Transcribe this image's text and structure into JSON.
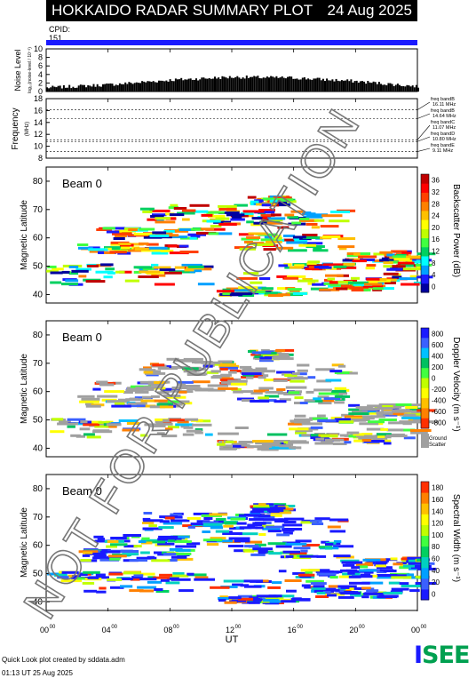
{
  "header": {
    "title": "HOKKAIDO RADAR SUMMARY PLOT",
    "date": "24 Aug 2025",
    "cpid_label": "CPID:",
    "cpid_value": "151"
  },
  "noise_panel": {
    "ylabel": "Noise Level",
    "ylabel_sub": "log₁₀(noise-level / 10⁻³)",
    "yticks": [
      "0",
      "2",
      "4",
      "6",
      "8",
      "10"
    ]
  },
  "frequency_panel": {
    "ylabel": "Frequency",
    "ylabel_unit": "(MHz)",
    "yticks": [
      "8",
      "10",
      "12",
      "14",
      "16",
      "18"
    ],
    "bands": [
      {
        "name": "freq bandB",
        "value": "16.11 MHz",
        "mhz": 16.11
      },
      {
        "name": "freq bandB",
        "value": "14.64 MHz",
        "mhz": 14.64
      },
      {
        "name": "freq bandC",
        "value": "11.07 MHz",
        "mhz": 11.07
      },
      {
        "name": "freq bandD",
        "value": "10.80 MHz",
        "mhz": 10.8
      },
      {
        "name": "freq bandE",
        "value": "9.11 MHz",
        "mhz": 9.11
      }
    ]
  },
  "panels": [
    {
      "id": "power",
      "beam_label": "Beam  0",
      "ylabel": "Magnetic Latitude",
      "yticks": [
        "40",
        "50",
        "60",
        "70",
        "80"
      ],
      "cbar_label": "Backscatter Power (dB)",
      "cbar_ticks": [
        "0",
        "4",
        "8",
        "12",
        "16",
        "20",
        "24",
        "28",
        "32",
        "36"
      ],
      "cbar_colors": [
        "#0000a0",
        "#1a1aff",
        "#00a0ff",
        "#00ffff",
        "#00d060",
        "#40ff40",
        "#c0ff00",
        "#ffff00",
        "#ffc000",
        "#ff8000",
        "#ff4000",
        "#ff0000",
        "#c00000"
      ]
    },
    {
      "id": "velocity",
      "beam_label": "Beam  0",
      "ylabel": "Magnetic Latitude",
      "yticks": [
        "40",
        "50",
        "60",
        "70",
        "80"
      ],
      "cbar_label": "Doppler Velocity (m s⁻¹)",
      "cbar_ticks": [
        "800",
        "600",
        "400",
        "200",
        "0",
        "-200",
        "-400",
        "-600",
        "-800"
      ],
      "cbar_colors": [
        "#1a1aff",
        "#3a60ff",
        "#00c0ff",
        "#00c060",
        "#40ff40",
        "#c0ff00",
        "#ffff00",
        "#ffc000",
        "#ff8000",
        "#ff3000"
      ],
      "ground_label": "Ground",
      "ground_label2": "Scatter",
      "ground_color": "#a0a0a0"
    },
    {
      "id": "width",
      "beam_label": "Beam  0",
      "ylabel": "Magnetic Latitude",
      "yticks": [
        "40",
        "50",
        "60",
        "70",
        "80"
      ],
      "cbar_label": "Spectral Width (m s⁻¹)",
      "cbar_ticks": [
        "0",
        "20",
        "40",
        "60",
        "80",
        "100",
        "120",
        "140",
        "160",
        "180"
      ],
      "cbar_colors": [
        "#1a1aff",
        "#3a60ff",
        "#00a0ff",
        "#00d0c0",
        "#00d060",
        "#40ff40",
        "#c0ff00",
        "#ffff00",
        "#ffc000",
        "#ff8000",
        "#ff3000"
      ]
    }
  ],
  "xaxis": {
    "label": "UT",
    "ticks": [
      {
        "h": "00",
        "m": "00"
      },
      {
        "h": "04",
        "m": "00"
      },
      {
        "h": "08",
        "m": "00"
      },
      {
        "h": "12",
        "m": "00"
      },
      {
        "h": "16",
        "m": "00"
      },
      {
        "h": "20",
        "m": "00"
      },
      {
        "h": "00",
        "m": "00"
      }
    ]
  },
  "footer": {
    "line1": "Quick Look plot created by sddata.adm",
    "line2": "01:13 UT 25 Aug 2025",
    "logo_letters": [
      "I",
      "S",
      "E",
      "E"
    ],
    "logo_colors": [
      "#1a1aff",
      "#00a050",
      "#00a050",
      "#00a050"
    ]
  },
  "watermark": "NOT FOR PUBLICATION",
  "chart_data": [
    {
      "type": "area",
      "title": "Noise Level",
      "ylim": [
        0,
        10
      ],
      "x_range_ut": [
        "00:00",
        "24:00"
      ],
      "x": [
        "00:00",
        "04:00",
        "08:00",
        "12:00",
        "16:00",
        "20:00",
        "24:00"
      ],
      "values": [
        0.5,
        1.2,
        2.3,
        3.0,
        2.8,
        2.0,
        0.8
      ]
    },
    {
      "type": "line",
      "title": "Frequency",
      "ylim": [
        8,
        18
      ],
      "series": [
        {
          "name": "freq bandB",
          "values": [
            16.11
          ]
        },
        {
          "name": "freq bandB",
          "values": [
            14.64
          ]
        },
        {
          "name": "freq bandC",
          "values": [
            11.07
          ]
        },
        {
          "name": "freq bandD",
          "values": [
            10.8
          ]
        },
        {
          "name": "freq bandE",
          "values": [
            9.11
          ]
        }
      ]
    },
    {
      "type": "heatmap",
      "title": "Backscatter Power (dB)",
      "ylabel": "Magnetic Latitude",
      "ylim": [
        37,
        85
      ],
      "clim": [
        0,
        38
      ]
    },
    {
      "type": "heatmap",
      "title": "Doppler Velocity (m s-1)",
      "ylabel": "Magnetic Latitude",
      "ylim": [
        37,
        85
      ],
      "clim": [
        -900,
        900
      ]
    },
    {
      "type": "heatmap",
      "title": "Spectral Width (m s-1)",
      "ylabel": "Magnetic Latitude",
      "ylim": [
        37,
        85
      ],
      "clim": [
        0,
        190
      ]
    }
  ]
}
